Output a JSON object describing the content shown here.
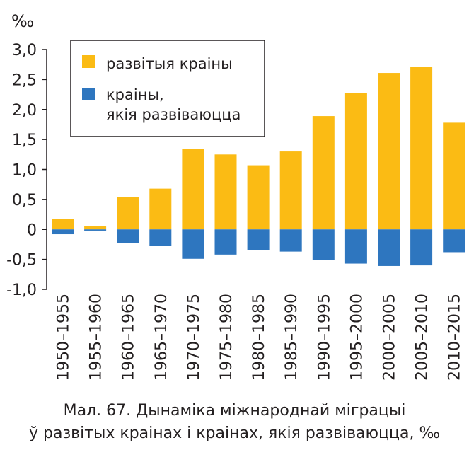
{
  "chart_data": {
    "type": "bar",
    "unit_label": "‰",
    "categories": [
      "1950–1955",
      "1955–1960",
      "1960–1965",
      "1965–1970",
      "1970–1975",
      "1975–1980",
      "1980–1985",
      "1985–1990",
      "1990–1995",
      "1995–2000",
      "2000–2005",
      "2005–2010",
      "2010–2015"
    ],
    "series": [
      {
        "name": "развітыя краіны",
        "color": "#fbbb14",
        "values": [
          0.17,
          0.05,
          0.54,
          0.68,
          1.34,
          1.25,
          1.07,
          1.3,
          1.89,
          2.27,
          2.61,
          2.71,
          1.78
        ]
      },
      {
        "name": "краіны,\nякія развіваюцца",
        "color": "#2e76bf",
        "values": [
          -0.08,
          -0.02,
          -0.23,
          -0.27,
          -0.49,
          -0.42,
          -0.34,
          -0.37,
          -0.51,
          -0.57,
          -0.61,
          -0.6,
          -0.38
        ]
      }
    ],
    "y_ticks": [
      3.0,
      2.5,
      2.0,
      1.5,
      1.0,
      0.5,
      0,
      -0.5,
      -1.0
    ],
    "y_tick_labels": [
      "3,0",
      "2,5",
      "2,0",
      "1,5",
      "1,0",
      "0,5",
      "0",
      "-0,5",
      "-1,0"
    ],
    "ylim": [
      -1.0,
      3.0
    ],
    "grid": false,
    "legend_position": "top-left",
    "stacked": true
  },
  "caption": {
    "line1": "Мал. 67. Дынаміка міжнароднай міграцыі",
    "line2": "ў развітых краінах і краінах, якія развіваюцца, ‰"
  }
}
